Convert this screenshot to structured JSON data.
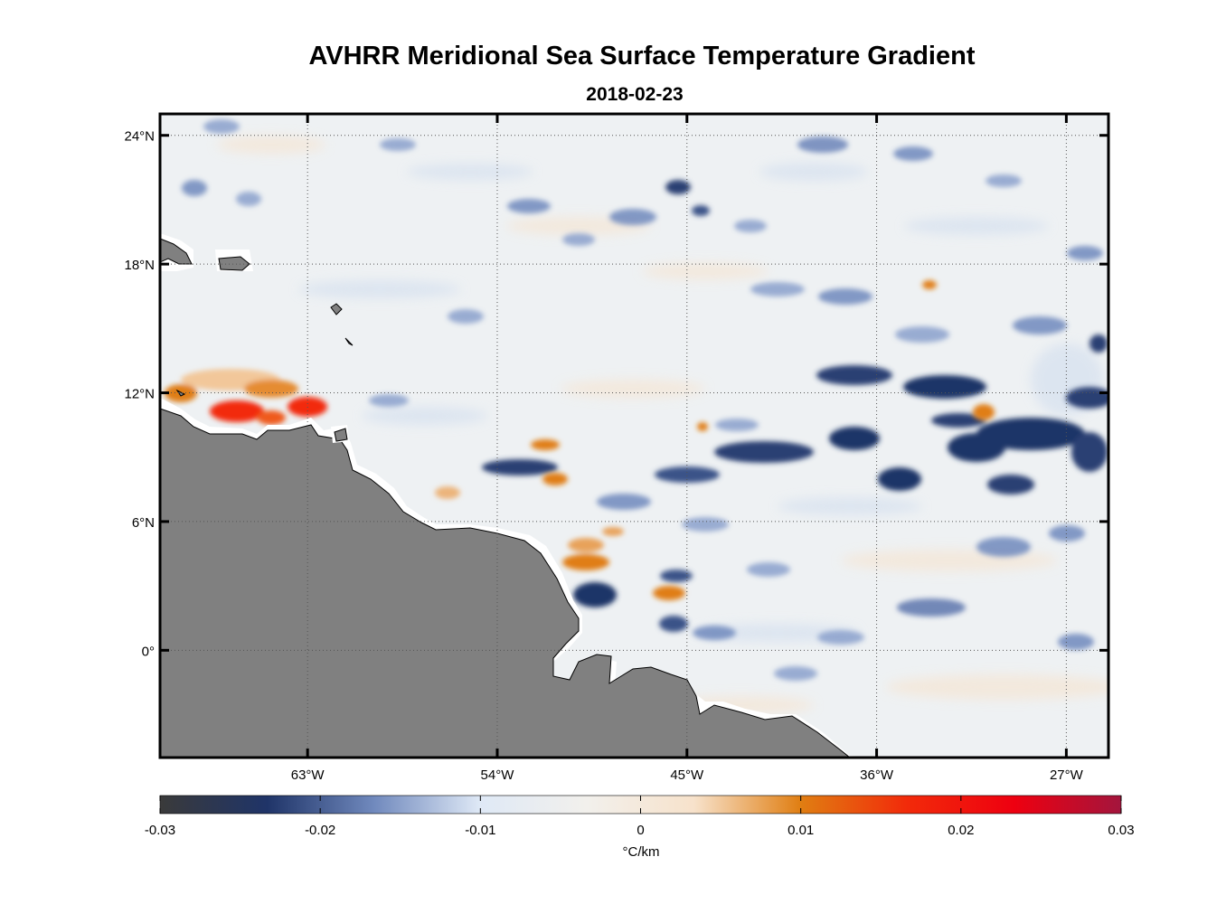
{
  "title": "AVHRR Meridional Sea Surface Temperature Gradient",
  "subtitle": "2018-02-23",
  "map": {
    "lon_range": [
      -70,
      -25
    ],
    "lat_range": [
      -5,
      25
    ],
    "lon_ticks": [
      {
        "value": -63,
        "label": "63°W"
      },
      {
        "value": -54,
        "label": "54°W"
      },
      {
        "value": -45,
        "label": "45°W"
      },
      {
        "value": -36,
        "label": "36°W"
      },
      {
        "value": -27,
        "label": "27°W"
      }
    ],
    "lat_ticks": [
      {
        "value": 24,
        "label": "24°N"
      },
      {
        "value": 18,
        "label": "18°N"
      },
      {
        "value": 12,
        "label": "12°N"
      },
      {
        "value": 6,
        "label": "6°N"
      },
      {
        "value": 0,
        "label": "0°"
      }
    ],
    "land_color": "#808080",
    "ocean_base": "#eef1f3"
  },
  "colorbar": {
    "ticks": [
      {
        "value": -0.03,
        "label": "-0.03"
      },
      {
        "value": -0.02,
        "label": "-0.02"
      },
      {
        "value": -0.01,
        "label": "-0.01"
      },
      {
        "value": 0,
        "label": "0"
      },
      {
        "value": 0.01,
        "label": "0.01"
      },
      {
        "value": 0.02,
        "label": "0.02"
      },
      {
        "value": 0.03,
        "label": "0.03"
      }
    ],
    "range": [
      -0.03,
      0.03
    ],
    "units": "°C/km",
    "colors": [
      "#3a3a3a",
      "#1f3468",
      "#7089bd",
      "#dfe9f6",
      "#f2f0ec",
      "#f7e2cb",
      "#e07e12",
      "#f22a0a",
      "#ee0010",
      "#a3153d"
    ]
  }
}
